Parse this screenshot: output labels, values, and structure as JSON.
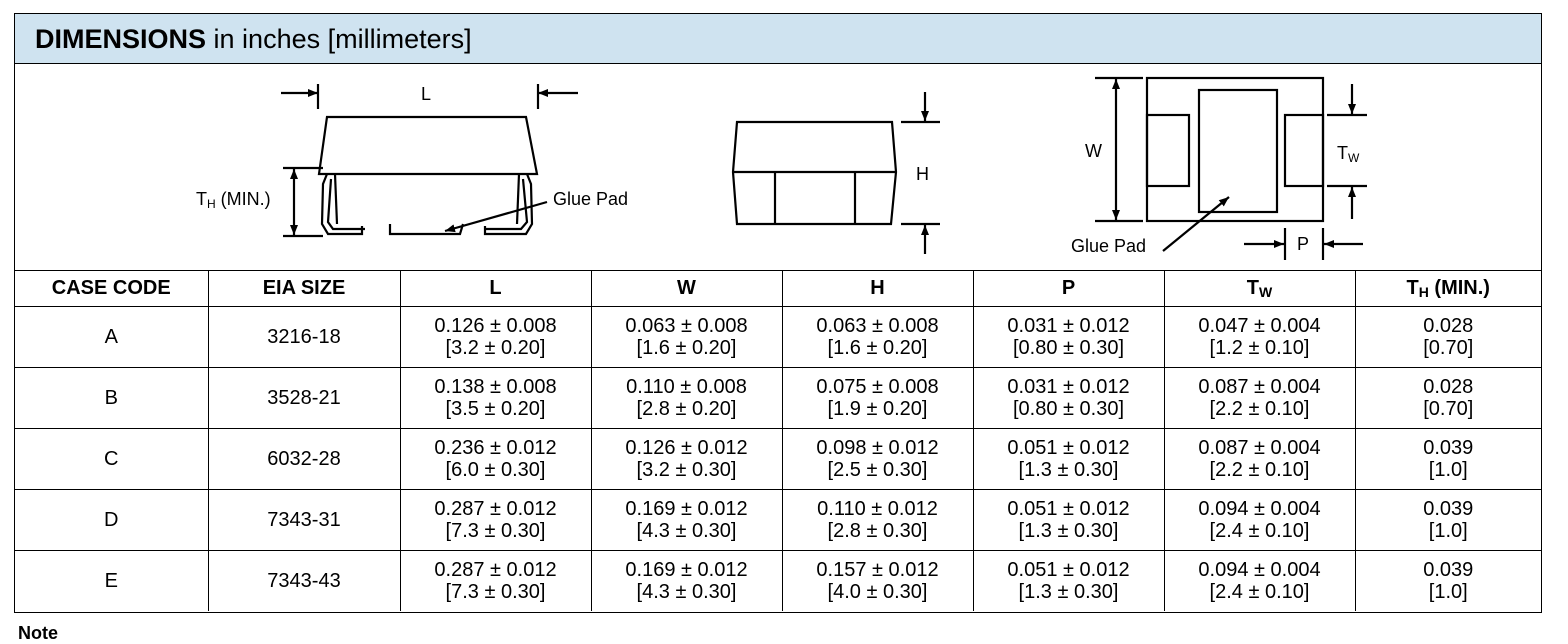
{
  "header": {
    "title_bold": "DIMENSIONS",
    "title_rest": " in inches [millimeters]"
  },
  "figure": {
    "label_L": "L",
    "label_TH": "T",
    "label_TH_sub": "H",
    "label_TH_suffix": " (MIN.)",
    "label_glue_pad_side": "Glue Pad",
    "label_H": "H",
    "label_W": "W",
    "label_TW": "T",
    "label_TW_sub": "W",
    "label_glue_pad_bottom": "Glue Pad",
    "label_P": "P"
  },
  "table": {
    "headers": {
      "case_code": "CASE CODE",
      "eia_size": "EIA SIZE",
      "L": "L",
      "W": "W",
      "H": "H",
      "P": "P",
      "TW_main": "T",
      "TW_sub": "W",
      "TH_main": "T",
      "TH_sub": "H",
      "TH_suffix": " (MIN.)"
    },
    "rows": [
      {
        "case": "A",
        "eia": "3216-18",
        "L_in": "0.126 ± 0.008",
        "L_mm": "[3.2 ± 0.20]",
        "W_in": "0.063 ± 0.008",
        "W_mm": "[1.6 ± 0.20]",
        "H_in": "0.063 ± 0.008",
        "H_mm": "[1.6 ± 0.20]",
        "P_in": "0.031 ± 0.012",
        "P_mm": "[0.80 ± 0.30]",
        "TW_in": "0.047 ± 0.004",
        "TW_mm": "[1.2 ± 0.10]",
        "TH_in": "0.028",
        "TH_mm": "[0.70]"
      },
      {
        "case": "B",
        "eia": "3528-21",
        "L_in": "0.138 ± 0.008",
        "L_mm": "[3.5 ± 0.20]",
        "W_in": "0.110 ± 0.008",
        "W_mm": "[2.8 ± 0.20]",
        "H_in": "0.075 ± 0.008",
        "H_mm": "[1.9 ± 0.20]",
        "P_in": "0.031 ± 0.012",
        "P_mm": "[0.80 ± 0.30]",
        "TW_in": "0.087 ± 0.004",
        "TW_mm": "[2.2 ± 0.10]",
        "TH_in": "0.028",
        "TH_mm": "[0.70]"
      },
      {
        "case": "C",
        "eia": "6032-28",
        "L_in": "0.236 ± 0.012",
        "L_mm": "[6.0 ± 0.30]",
        "W_in": "0.126 ± 0.012",
        "W_mm": "[3.2 ± 0.30]",
        "H_in": "0.098 ± 0.012",
        "H_mm": "[2.5 ± 0.30]",
        "P_in": "0.051 ± 0.012",
        "P_mm": "[1.3 ± 0.30]",
        "TW_in": "0.087 ± 0.004",
        "TW_mm": "[2.2 ± 0.10]",
        "TH_in": "0.039",
        "TH_mm": "[1.0]"
      },
      {
        "case": "D",
        "eia": "7343-31",
        "L_in": "0.287 ± 0.012",
        "L_mm": "[7.3 ± 0.30]",
        "W_in": "0.169 ± 0.012",
        "W_mm": "[4.3 ± 0.30]",
        "H_in": "0.110 ± 0.012",
        "H_mm": "[2.8 ± 0.30]",
        "P_in": "0.051 ± 0.012",
        "P_mm": "[1.3 ± 0.30]",
        "TW_in": "0.094 ± 0.004",
        "TW_mm": "[2.4 ± 0.10]",
        "TH_in": "0.039",
        "TH_mm": "[1.0]"
      },
      {
        "case": "E",
        "eia": "7343-43",
        "L_in": "0.287 ± 0.012",
        "L_mm": "[7.3 ± 0.30]",
        "W_in": "0.169 ± 0.012",
        "W_mm": "[4.3 ± 0.30]",
        "H_in": "0.157 ± 0.012",
        "H_mm": "[4.0 ± 0.30]",
        "P_in": "0.051 ± 0.012",
        "P_mm": "[1.3 ± 0.30]",
        "TW_in": "0.094 ± 0.004",
        "TW_mm": "[2.4 ± 0.10]",
        "TH_in": "0.039",
        "TH_mm": "[1.0]"
      }
    ]
  },
  "note": "Note"
}
